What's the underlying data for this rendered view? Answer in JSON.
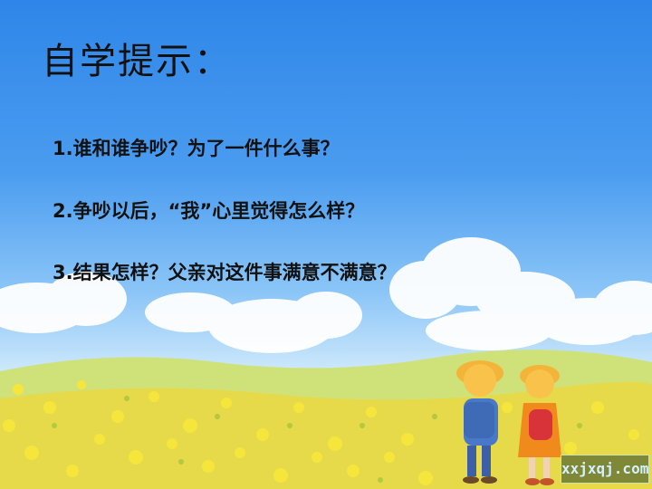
{
  "slide": {
    "title": "自学提示：",
    "questions": [
      "1.谁和谁争吵？为了一件什么事？",
      "2.争吵以后，“我”心里觉得怎么样？",
      "3.结果怎样？父亲对这件事满意不满意？"
    ],
    "watermark": "xxjxqj.com"
  },
  "colors": {
    "sky_top": "#2f86e8",
    "flowers": "#f3e23a",
    "text": "#111111"
  }
}
